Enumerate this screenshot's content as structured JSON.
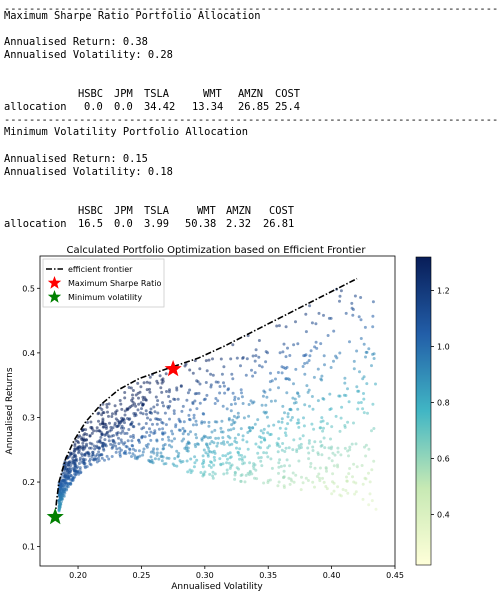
{
  "divider": "--------------------------------------------------------------------------------",
  "max_sharpe": {
    "heading": "Maximum Sharpe Ratio Portfolio Allocation",
    "return_line": "Annualised Return: 0.38",
    "volatility_line": "Annualised Volatility: 0.28",
    "row_label": "allocation",
    "columns": [
      "HSBC",
      "JPM",
      "TSLA",
      "WMT",
      "AMZN",
      "COST"
    ],
    "values": [
      "0.0",
      "0.0",
      "34.42",
      "13.34",
      "26.85",
      "25.4"
    ]
  },
  "min_vol": {
    "heading": "Minimum Volatility Portfolio Allocation",
    "return_line": "Annualised Return: 0.15",
    "volatility_line": "Annualised Volatility: 0.18",
    "row_label": "allocation",
    "columns": [
      "HSBC",
      "JPM",
      "TSLA",
      "WMT",
      "AMZN",
      "COST"
    ],
    "values": [
      "16.5",
      "0.0",
      "3.99",
      "50.38",
      "2.32",
      "26.81"
    ]
  },
  "chart_data": {
    "type": "scatter",
    "title": "Calculated Portfolio Optimization based on Efficient Frontier",
    "xlabel": "Annualised Volatility",
    "ylabel": "Annualised Returns",
    "xlim": [
      0.17,
      0.45
    ],
    "ylim": [
      0.07,
      0.55
    ],
    "xticks": [
      "0.20",
      "0.25",
      "0.30",
      "0.35",
      "0.40",
      "0.45"
    ],
    "yticks": [
      "0.1",
      "0.2",
      "0.3",
      "0.4",
      "0.5"
    ],
    "colorbar_ticks": [
      "0.4",
      "0.6",
      "0.8",
      "1.0",
      "1.2"
    ],
    "colorbar_range": [
      0.22,
      1.32
    ],
    "colormap": "YlGnBu",
    "legend_position": "upper-left",
    "legend": [
      {
        "label": "efficient frontier",
        "color": "#000000",
        "marker": "dash-dot"
      },
      {
        "label": "Maximum Sharpe Ratio",
        "color": "#ff0000",
        "marker": "star"
      },
      {
        "label": "Minimum volatility",
        "color": "#008000",
        "marker": "star"
      }
    ],
    "frontier": [
      [
        0.182,
        0.146
      ],
      [
        0.183,
        0.17
      ],
      [
        0.185,
        0.2
      ],
      [
        0.19,
        0.235
      ],
      [
        0.197,
        0.265
      ],
      [
        0.206,
        0.293
      ],
      [
        0.218,
        0.32
      ],
      [
        0.232,
        0.343
      ],
      [
        0.248,
        0.36
      ],
      [
        0.262,
        0.37
      ],
      [
        0.277,
        0.38
      ],
      [
        0.295,
        0.392
      ],
      [
        0.315,
        0.41
      ],
      [
        0.34,
        0.435
      ],
      [
        0.37,
        0.465
      ],
      [
        0.4,
        0.495
      ],
      [
        0.42,
        0.515
      ]
    ],
    "max_sharpe_point": [
      0.275,
      0.375
    ],
    "min_vol_point": [
      0.182,
      0.146
    ]
  }
}
